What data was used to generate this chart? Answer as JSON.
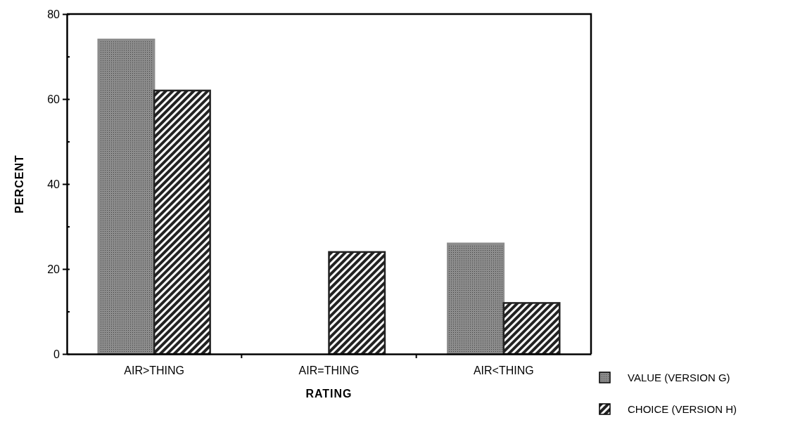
{
  "chart_data": {
    "type": "bar",
    "xlabel": "RATING",
    "ylabel": "PERCENT",
    "categories": [
      "AIR>THING",
      "AIR=THING",
      "AIR<THING"
    ],
    "series": [
      {
        "name": "VALUE (VERSION G)",
        "color": "#8c8c8c",
        "values": [
          74,
          0,
          26
        ]
      },
      {
        "name": "CHOICE (VERSION H)",
        "color": "#222222",
        "values": [
          62,
          24,
          12
        ]
      }
    ],
    "ylim": [
      0,
      80
    ],
    "yticks": [
      0,
      {
        "value": 10,
        "label": null
      },
      20,
      {
        "value": 30,
        "label": null
      },
      40,
      {
        "value": 50,
        "label": null
      },
      60,
      {
        "value": 70,
        "label": null
      },
      80
    ],
    "grid": false,
    "legend": "bottom right"
  }
}
